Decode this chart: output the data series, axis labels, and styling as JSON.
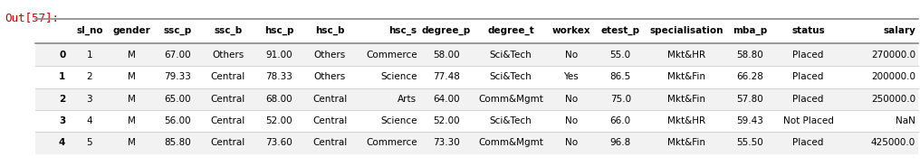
{
  "out_label": "Out[57]:",
  "columns": [
    "sl_no",
    "gender",
    "ssc_p",
    "ssc_b",
    "hsc_p",
    "hsc_b",
    "hsc_s",
    "degree_p",
    "degree_t",
    "workex",
    "etest_p",
    "specialisation",
    "mba_p",
    "status",
    "salary"
  ],
  "index": [
    "0",
    "1",
    "2",
    "3",
    "4"
  ],
  "rows": [
    [
      "1",
      "M",
      "67.00",
      "Others",
      "91.00",
      "Others",
      "Commerce",
      "58.00",
      "Sci&Tech",
      "No",
      "55.0",
      "Mkt&HR",
      "58.80",
      "Placed",
      "270000.0"
    ],
    [
      "2",
      "M",
      "79.33",
      "Central",
      "78.33",
      "Others",
      "Science",
      "77.48",
      "Sci&Tech",
      "Yes",
      "86.5",
      "Mkt&Fin",
      "66.28",
      "Placed",
      "200000.0"
    ],
    [
      "3",
      "M",
      "65.00",
      "Central",
      "68.00",
      "Central",
      "Arts",
      "64.00",
      "Comm&Mgmt",
      "No",
      "75.0",
      "Mkt&Fin",
      "57.80",
      "Placed",
      "250000.0"
    ],
    [
      "4",
      "M",
      "56.00",
      "Central",
      "52.00",
      "Central",
      "Science",
      "52.00",
      "Sci&Tech",
      "No",
      "66.0",
      "Mkt&HR",
      "59.43",
      "Not Placed",
      "NaN"
    ],
    [
      "5",
      "M",
      "85.80",
      "Central",
      "73.60",
      "Central",
      "Commerce",
      "73.30",
      "Comm&Mgmt",
      "No",
      "96.8",
      "Mkt&Fin",
      "55.50",
      "Placed",
      "425000.0"
    ]
  ],
  "bg_color": "#ffffff",
  "text_color": "#000000",
  "out_label_color": "#cc0000",
  "alt_row_color": "#f0f0f0",
  "header_line_color": "#555555",
  "sep_line_color": "#cccccc",
  "font_size": 7.5,
  "out_label_font_size": 9.0
}
